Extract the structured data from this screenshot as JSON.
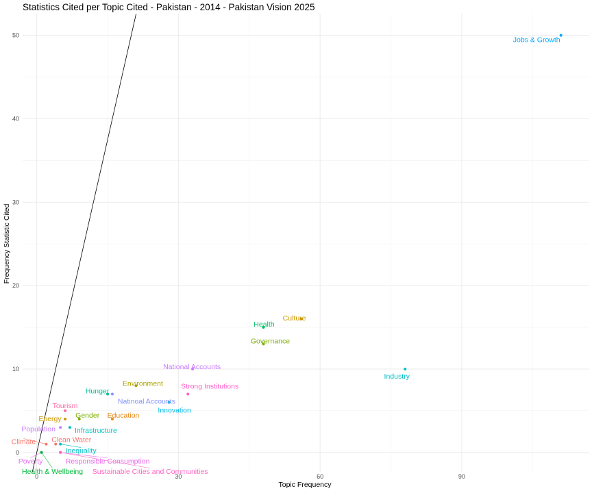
{
  "chart_data": {
    "type": "scatter",
    "title": "Statistics Cited per Topic Cited - Pakistan - 2014 - Pakistan Vision 2025",
    "xlabel": "Topic Frequency",
    "ylabel": "Frequency Statistic Cited",
    "xlim": [
      -3,
      117
    ],
    "ylim": [
      -2.4,
      52.6
    ],
    "x_ticks": [
      0,
      30,
      60,
      90
    ],
    "y_ticks": [
      0,
      10,
      20,
      30,
      40,
      50
    ],
    "grid": true,
    "legend": "none",
    "reference_line": {
      "slope": 2.5,
      "intercept": 0
    },
    "points": [
      {
        "label": "Jobs & Growth",
        "x": 111,
        "y": 50,
        "color": "#00A9FF"
      },
      {
        "label": "Culture",
        "x": 56,
        "y": 16,
        "color": "#CD9600"
      },
      {
        "label": "Health",
        "x": 48,
        "y": 15,
        "color": "#00BE67"
      },
      {
        "label": "Governance",
        "x": 48,
        "y": 13,
        "color": "#7CAE00"
      },
      {
        "label": "Industry",
        "x": 78,
        "y": 10,
        "color": "#00BFC4"
      },
      {
        "label": "National Accounts",
        "x": 33,
        "y": 10,
        "color": "#C77CFF"
      },
      {
        "label": "Environment",
        "x": 21,
        "y": 8,
        "color": "#ABA300"
      },
      {
        "label": "Strong Institutions",
        "x": 32,
        "y": 7,
        "color": "#FF61CC"
      },
      {
        "label": "Hunger",
        "x": 15,
        "y": 7,
        "color": "#00C19A"
      },
      {
        "label": "Natinoal Accounts",
        "x": 16,
        "y": 7,
        "color": "#8494FF"
      },
      {
        "label": "Innovation",
        "x": 28,
        "y": 6,
        "color": "#00B8E7"
      },
      {
        "label": "Tourism",
        "x": 6,
        "y": 5,
        "color": "#FF68A1"
      },
      {
        "label": "Energy",
        "x": 6,
        "y": 4,
        "color": "#CD9600"
      },
      {
        "label": "Gender",
        "x": 9,
        "y": 4,
        "color": "#7CAE00"
      },
      {
        "label": "Education",
        "x": 16,
        "y": 4,
        "color": "#E68613"
      },
      {
        "label": "Population",
        "x": 5,
        "y": 3,
        "color": "#C77CFF"
      },
      {
        "label": "Infrastructure",
        "x": 7,
        "y": 3,
        "color": "#00BFC4"
      },
      {
        "label": "Climate",
        "x": 2,
        "y": 1,
        "color": "#F8766D"
      },
      {
        "label": "Clean Water",
        "x": 4,
        "y": 1,
        "color": "#F8766D"
      },
      {
        "label": "Inequality",
        "x": 5,
        "y": 1,
        "color": "#00BFC4"
      },
      {
        "label": "Poverty",
        "x": 1,
        "y": 0,
        "color": "#E76BF3"
      },
      {
        "label": "Responsible Consumption",
        "x": 5,
        "y": 0,
        "color": "#ED68ED"
      },
      {
        "label": "Health & Wellbeing",
        "x": 1,
        "y": 0,
        "color": "#00BA38"
      },
      {
        "label": "Sustainable Cities and Communities",
        "x": 5,
        "y": 0,
        "color": "#FF61C3"
      }
    ]
  }
}
